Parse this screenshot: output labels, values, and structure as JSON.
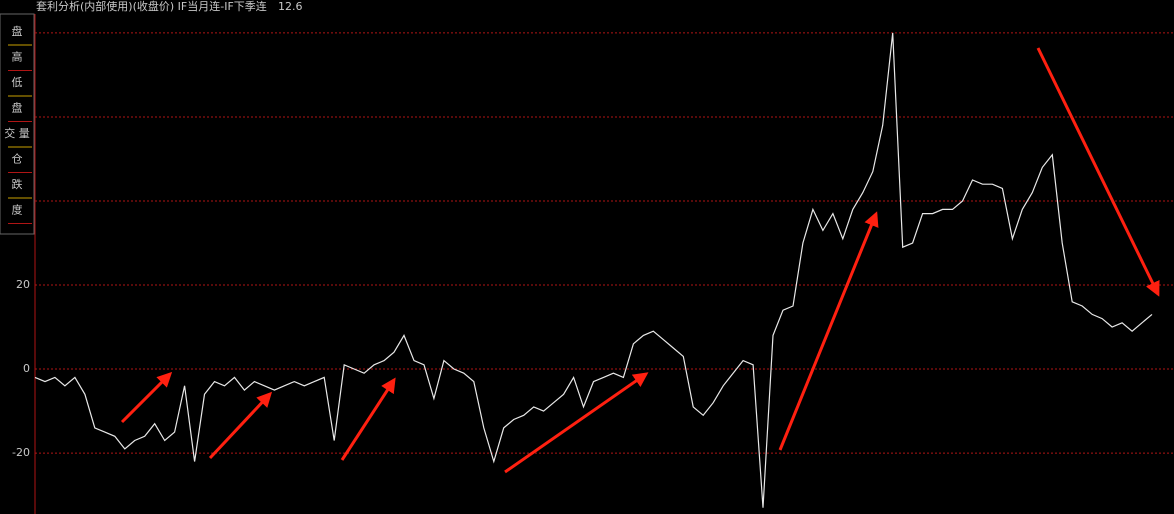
{
  "chart_data": {
    "type": "line",
    "title": "套利分析(内部使用)(收盘价) IF当月连-IF下季连",
    "subtitle": "12.6",
    "menu": [
      "盘",
      "高",
      "低",
      "盘",
      "交 量",
      "仓",
      "跌",
      "度"
    ],
    "color": "#e8e8e8",
    "values": [
      -2,
      -3,
      -2,
      -4,
      -2,
      -6,
      -14,
      -15,
      -16,
      -19,
      -17,
      -16,
      -13,
      -17,
      -15,
      -4,
      -22,
      -6,
      -3,
      -4,
      -2,
      -5,
      -3,
      -4,
      -5,
      -4,
      -3,
      -4,
      -3,
      -2,
      -17,
      1,
      0,
      -1,
      1,
      2,
      4,
      8,
      2,
      1,
      -7,
      2,
      0,
      -1,
      -3,
      -14,
      -22,
      -14,
      -12,
      -11,
      -9,
      -10,
      -8,
      -6,
      -2,
      -9,
      -3,
      -2,
      -1,
      -2,
      6,
      8,
      9,
      7,
      5,
      3,
      -9,
      -11,
      -8,
      -4,
      -1,
      2,
      1,
      -33,
      8,
      14,
      15,
      30,
      38,
      33,
      37,
      31,
      38,
      42,
      47,
      58,
      80,
      29,
      30,
      37,
      37,
      38,
      38,
      40,
      45,
      44,
      44,
      43,
      31,
      38,
      42,
      48,
      51,
      30,
      16,
      15,
      13,
      12,
      10,
      11,
      9,
      11,
      13
    ],
    "ylim": [
      -34.5,
      84.5
    ],
    "yticks": [
      -20,
      0,
      20
    ],
    "gridlines": [
      -20,
      0,
      20,
      40,
      60,
      80
    ],
    "grid_color": "#b01515"
  }
}
